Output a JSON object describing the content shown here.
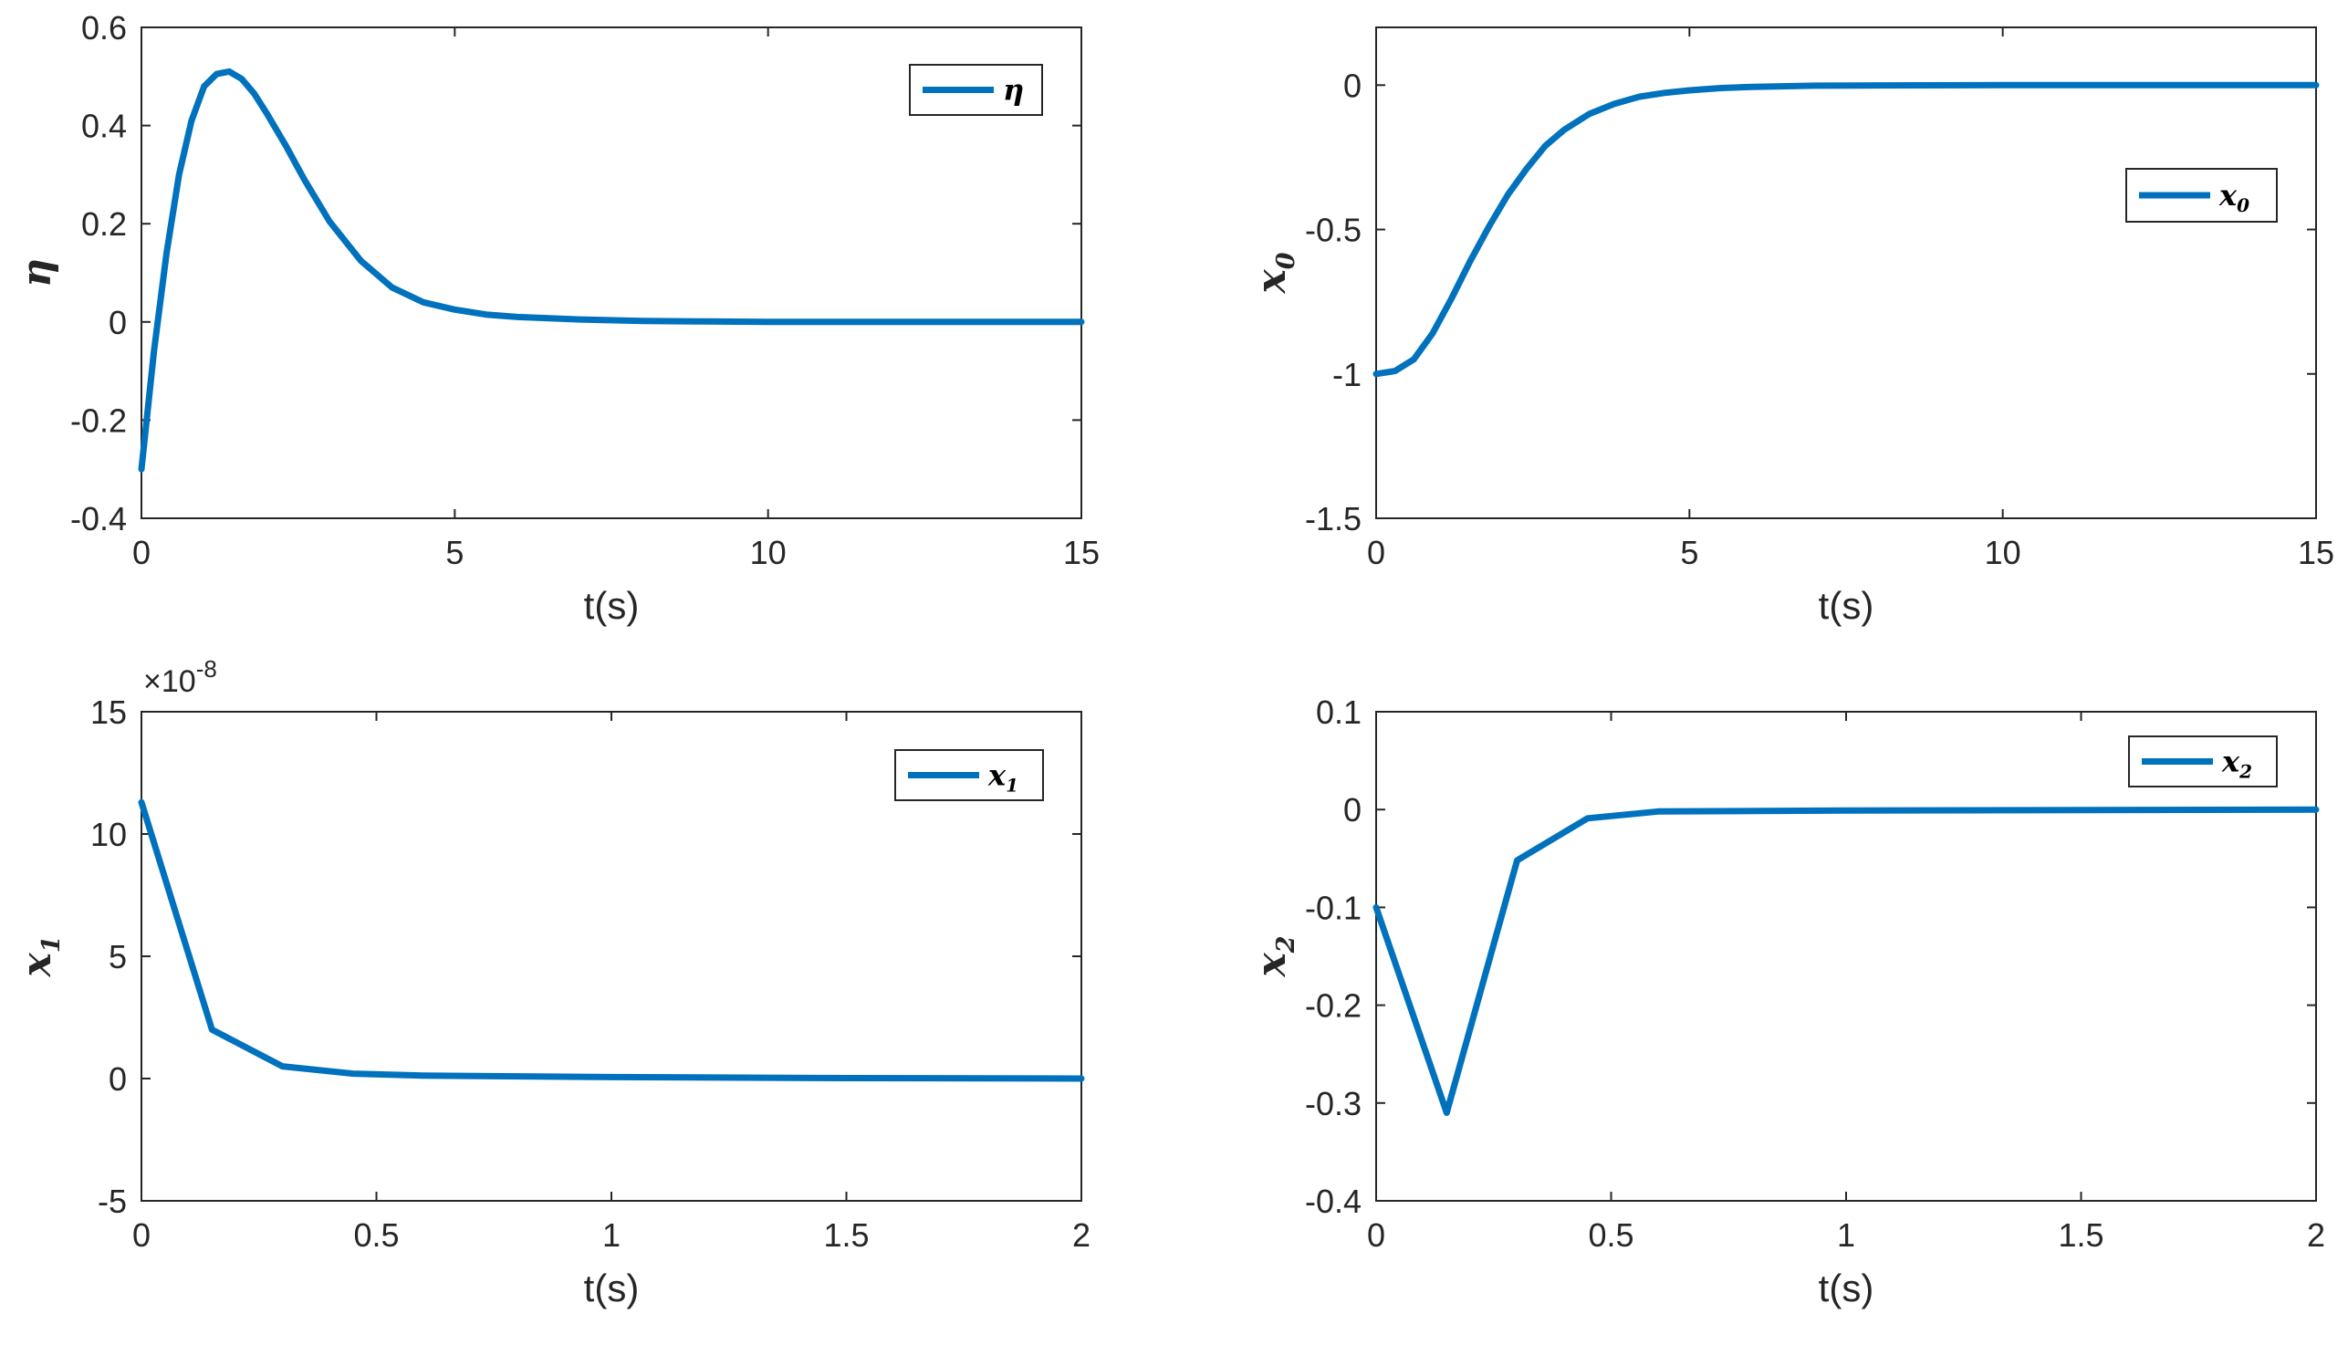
{
  "colors": {
    "line": "#0072BD",
    "axis": "#262626",
    "background": "#ffffff"
  },
  "chart_data": [
    {
      "type": "line",
      "xlabel": "t(s)",
      "ylabel": "η",
      "xlim": [
        0,
        15
      ],
      "ylim": [
        -0.4,
        0.6
      ],
      "xticks": [
        0,
        5,
        10,
        15
      ],
      "yticks": [
        -0.4,
        -0.2,
        0,
        0.2,
        0.4,
        0.6
      ],
      "xtick_labels": [
        "0",
        "5",
        "10",
        "15"
      ],
      "ytick_labels": [
        "-0.4",
        "-0.2",
        "0",
        "0.2",
        "0.4",
        "0.6"
      ],
      "exponent_label": "",
      "legend": "top-right",
      "series": [
        {
          "name": "η",
          "x": [
            0,
            0.2,
            0.4,
            0.6,
            0.8,
            1.0,
            1.2,
            1.4,
            1.6,
            1.8,
            2.0,
            2.3,
            2.6,
            3.0,
            3.5,
            4.0,
            4.5,
            5.0,
            5.5,
            6.0,
            7.0,
            8.0,
            9.0,
            10.0,
            12.0,
            15.0
          ],
          "y": [
            -0.3,
            -0.06,
            0.14,
            0.3,
            0.41,
            0.48,
            0.505,
            0.51,
            0.495,
            0.465,
            0.425,
            0.36,
            0.29,
            0.205,
            0.125,
            0.07,
            0.04,
            0.025,
            0.015,
            0.01,
            0.005,
            0.002,
            0.001,
            0.0,
            0.0,
            0.0
          ]
        }
      ]
    },
    {
      "type": "line",
      "xlabel": "t(s)",
      "ylabel": "x0",
      "xlim": [
        0,
        15
      ],
      "ylim": [
        -1.5,
        0.2
      ],
      "xticks": [
        0,
        5,
        10,
        15
      ],
      "yticks": [
        -1.5,
        -1,
        -0.5,
        0
      ],
      "xtick_labels": [
        "0",
        "5",
        "10",
        "15"
      ],
      "ytick_labels": [
        "-1.5",
        "-1",
        "-0.5",
        "0"
      ],
      "exponent_label": "",
      "legend": "top-right",
      "series": [
        {
          "name": "x0",
          "x": [
            0,
            0.3,
            0.6,
            0.9,
            1.2,
            1.5,
            1.8,
            2.1,
            2.4,
            2.7,
            3.0,
            3.4,
            3.8,
            4.2,
            4.6,
            5.0,
            5.5,
            6.0,
            7.0,
            8.0,
            10.0,
            15.0
          ],
          "y": [
            -1.0,
            -0.99,
            -0.95,
            -0.86,
            -0.74,
            -0.61,
            -0.49,
            -0.38,
            -0.29,
            -0.21,
            -0.155,
            -0.1,
            -0.065,
            -0.04,
            -0.027,
            -0.018,
            -0.01,
            -0.006,
            -0.002,
            -0.001,
            0.0,
            0.0
          ]
        }
      ]
    },
    {
      "type": "line",
      "xlabel": "t(s)",
      "ylabel": "x1",
      "xlim": [
        0,
        2
      ],
      "ylim": [
        -5,
        15
      ],
      "xticks": [
        0,
        0.5,
        1,
        1.5,
        2
      ],
      "yticks": [
        -5,
        0,
        5,
        10,
        15
      ],
      "xtick_labels": [
        "0",
        "0.5",
        "1",
        "1.5",
        "2"
      ],
      "ytick_labels": [
        "-5",
        "0",
        "5",
        "10",
        "15"
      ],
      "exponent_label": "×10",
      "exponent_power": "-8",
      "legend": "top-right",
      "series": [
        {
          "name": "x1",
          "x": [
            0,
            0.15,
            0.3,
            0.45,
            0.6,
            1.0,
            1.5,
            2.0
          ],
          "y": [
            11.3,
            2.0,
            0.5,
            0.2,
            0.12,
            0.06,
            0.02,
            0.0
          ]
        }
      ]
    },
    {
      "type": "line",
      "xlabel": "t(s)",
      "ylabel": "x2",
      "xlim": [
        0,
        2
      ],
      "ylim": [
        -0.4,
        0.1
      ],
      "xticks": [
        0,
        0.5,
        1,
        1.5,
        2
      ],
      "yticks": [
        -0.4,
        -0.3,
        -0.2,
        -0.1,
        0,
        0.1
      ],
      "xtick_labels": [
        "0",
        "0.5",
        "1",
        "1.5",
        "2"
      ],
      "ytick_labels": [
        "-0.4",
        "-0.3",
        "-0.2",
        "-0.1",
        "0",
        "0.1"
      ],
      "exponent_label": "",
      "legend": "top-right",
      "series": [
        {
          "name": "x2",
          "x": [
            0,
            0.15,
            0.3,
            0.45,
            0.6,
            1.0,
            2.0
          ],
          "y": [
            -0.1,
            -0.31,
            -0.052,
            -0.009,
            -0.002,
            -0.001,
            0.0
          ]
        }
      ]
    }
  ]
}
